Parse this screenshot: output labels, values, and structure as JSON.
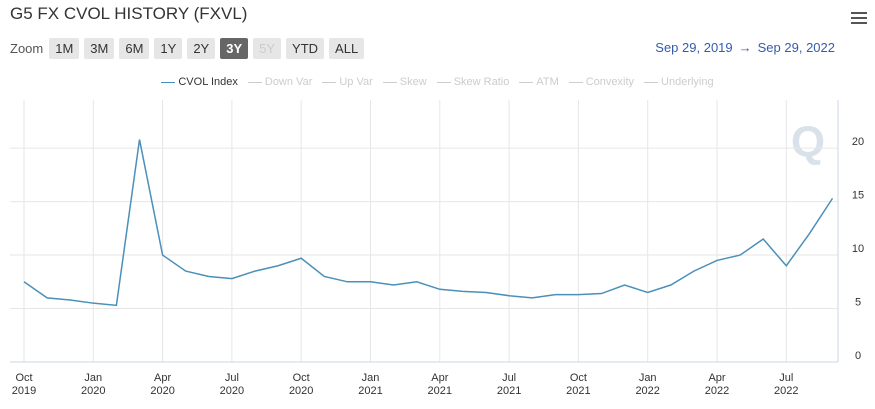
{
  "header": {
    "title": "G5 FX CVOL HISTORY (FXVL)"
  },
  "toolbar": {
    "zoom_label": "Zoom",
    "buttons": [
      "1M",
      "3M",
      "6M",
      "1Y",
      "2Y",
      "3Y",
      "5Y",
      "YTD",
      "ALL"
    ],
    "active_button": "3Y",
    "disabled_button": "5Y",
    "range_from": "Sep 29, 2019",
    "range_arrow": "→",
    "range_to": "Sep 29, 2022"
  },
  "chart_data": {
    "type": "line",
    "x": [
      "2019-10",
      "2019-11",
      "2019-12",
      "2020-01",
      "2020-02",
      "2020-03",
      "2020-04",
      "2020-05",
      "2020-06",
      "2020-07",
      "2020-08",
      "2020-09",
      "2020-10",
      "2020-11",
      "2020-12",
      "2021-01",
      "2021-02",
      "2021-03",
      "2021-04",
      "2021-05",
      "2021-06",
      "2021-07",
      "2021-08",
      "2021-09",
      "2021-10",
      "2021-11",
      "2021-12",
      "2022-01",
      "2022-02",
      "2022-03",
      "2022-04",
      "2022-05",
      "2022-06",
      "2022-07",
      "2022-08",
      "2022-09"
    ],
    "series": [
      {
        "name": "CVOL Index",
        "color": "#4a90b8",
        "values": [
          7.5,
          6.0,
          5.8,
          5.5,
          5.3,
          20.8,
          10.0,
          8.5,
          8.0,
          7.8,
          8.5,
          9.0,
          9.7,
          8.0,
          7.5,
          7.5,
          7.2,
          7.5,
          6.8,
          6.6,
          6.5,
          6.2,
          6.0,
          6.3,
          6.3,
          6.4,
          7.2,
          6.5,
          7.2,
          8.5,
          9.5,
          10.0,
          11.5,
          9.0,
          12.0,
          15.3
        ]
      }
    ],
    "inactive_legend": [
      "Down Var",
      "Up Var",
      "Skew",
      "Skew Ratio",
      "ATM",
      "Convexity",
      "Underlying"
    ],
    "ylim": [
      0,
      24.5
    ],
    "yticks": [
      0,
      5,
      10,
      15,
      20
    ],
    "grid": true,
    "xticks": [
      {
        "value": "2019-10",
        "label": "Oct 2019"
      },
      {
        "value": "2020-01",
        "label": "Jan 2020"
      },
      {
        "value": "2020-04",
        "label": "Apr 2020"
      },
      {
        "value": "2020-07",
        "label": "Jul 2020"
      },
      {
        "value": "2020-10",
        "label": "Oct 2020"
      },
      {
        "value": "2021-01",
        "label": "Jan 2021"
      },
      {
        "value": "2021-04",
        "label": "Apr 2021"
      },
      {
        "value": "2021-07",
        "label": "Jul 2021"
      },
      {
        "value": "2021-10",
        "label": "Oct 2021"
      },
      {
        "value": "2022-01",
        "label": "Jan 2022"
      },
      {
        "value": "2022-04",
        "label": "Apr 2022"
      },
      {
        "value": "2022-07",
        "label": "Jul 2022"
      }
    ]
  }
}
